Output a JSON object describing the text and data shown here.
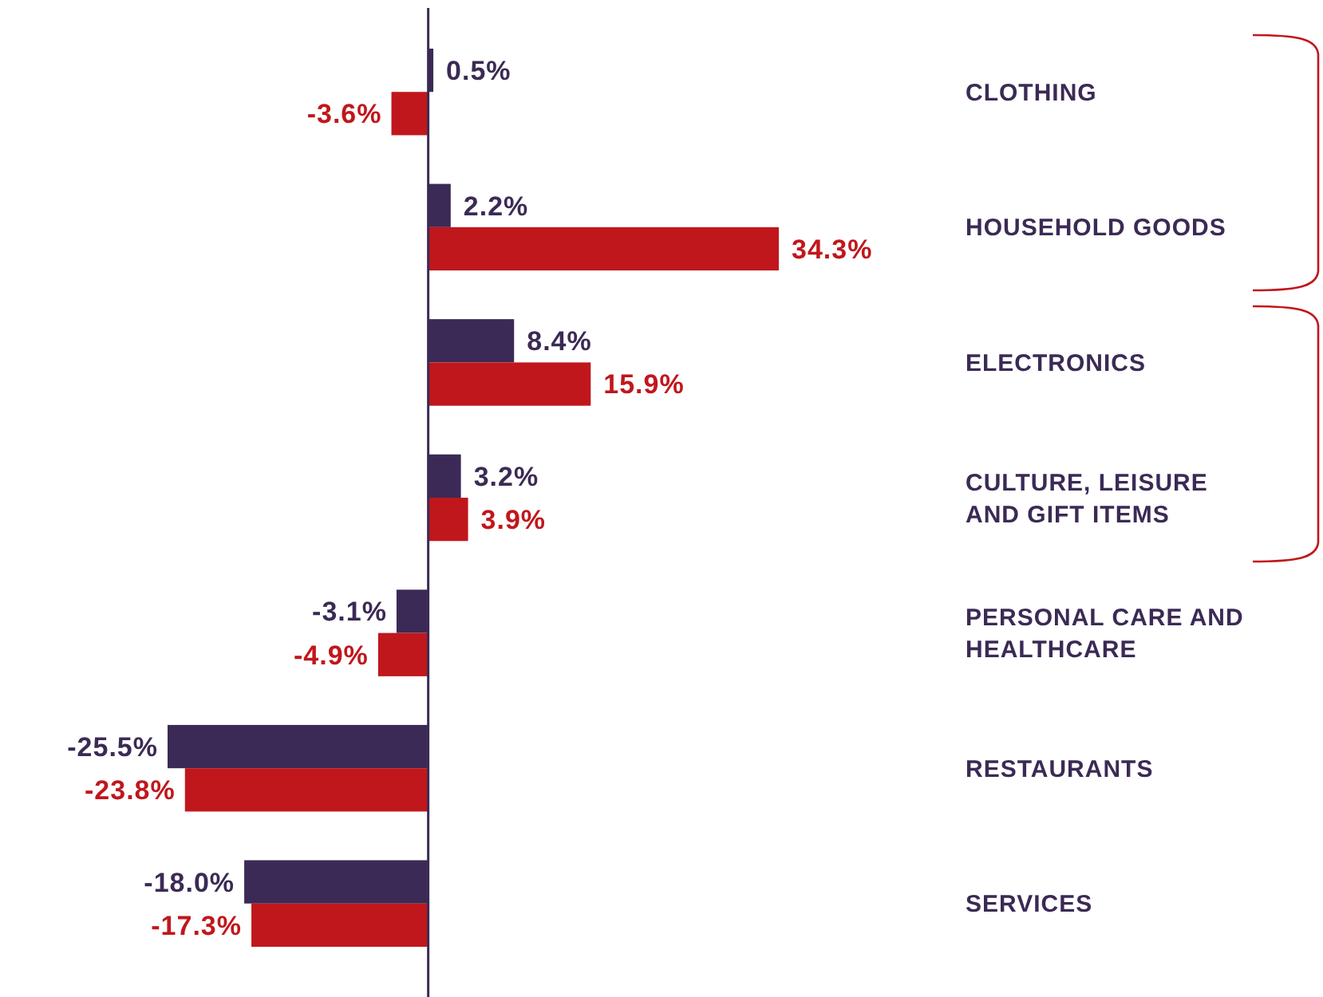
{
  "chart_data": {
    "type": "bar",
    "orientation": "horizontal",
    "categories": [
      "CLOTHING",
      "HOUSEHOLD GOODS",
      "ELECTRONICS",
      "CULTURE, LEISURE AND GIFT ITEMS",
      "PERSONAL CARE AND HEALTHCARE",
      "RESTAURANTS",
      "SERVICES"
    ],
    "series": [
      {
        "color": "#3b2a55",
        "values": [
          0.5,
          2.2,
          8.4,
          3.2,
          -3.1,
          -25.5,
          -18.0
        ],
        "value_labels": [
          "0.5%",
          "2.2%",
          "8.4%",
          "3.2%",
          "-3.1%",
          "-25.5%",
          "-18.0%"
        ]
      },
      {
        "color": "#c0171c",
        "values": [
          -3.6,
          34.3,
          15.9,
          3.9,
          -4.9,
          -23.8,
          -17.3
        ],
        "value_labels": [
          "-3.6%",
          "34.3%",
          "15.9%",
          "3.9%",
          "-4.9%",
          "-23.8%",
          "-17.3%"
        ]
      }
    ]
  }
}
